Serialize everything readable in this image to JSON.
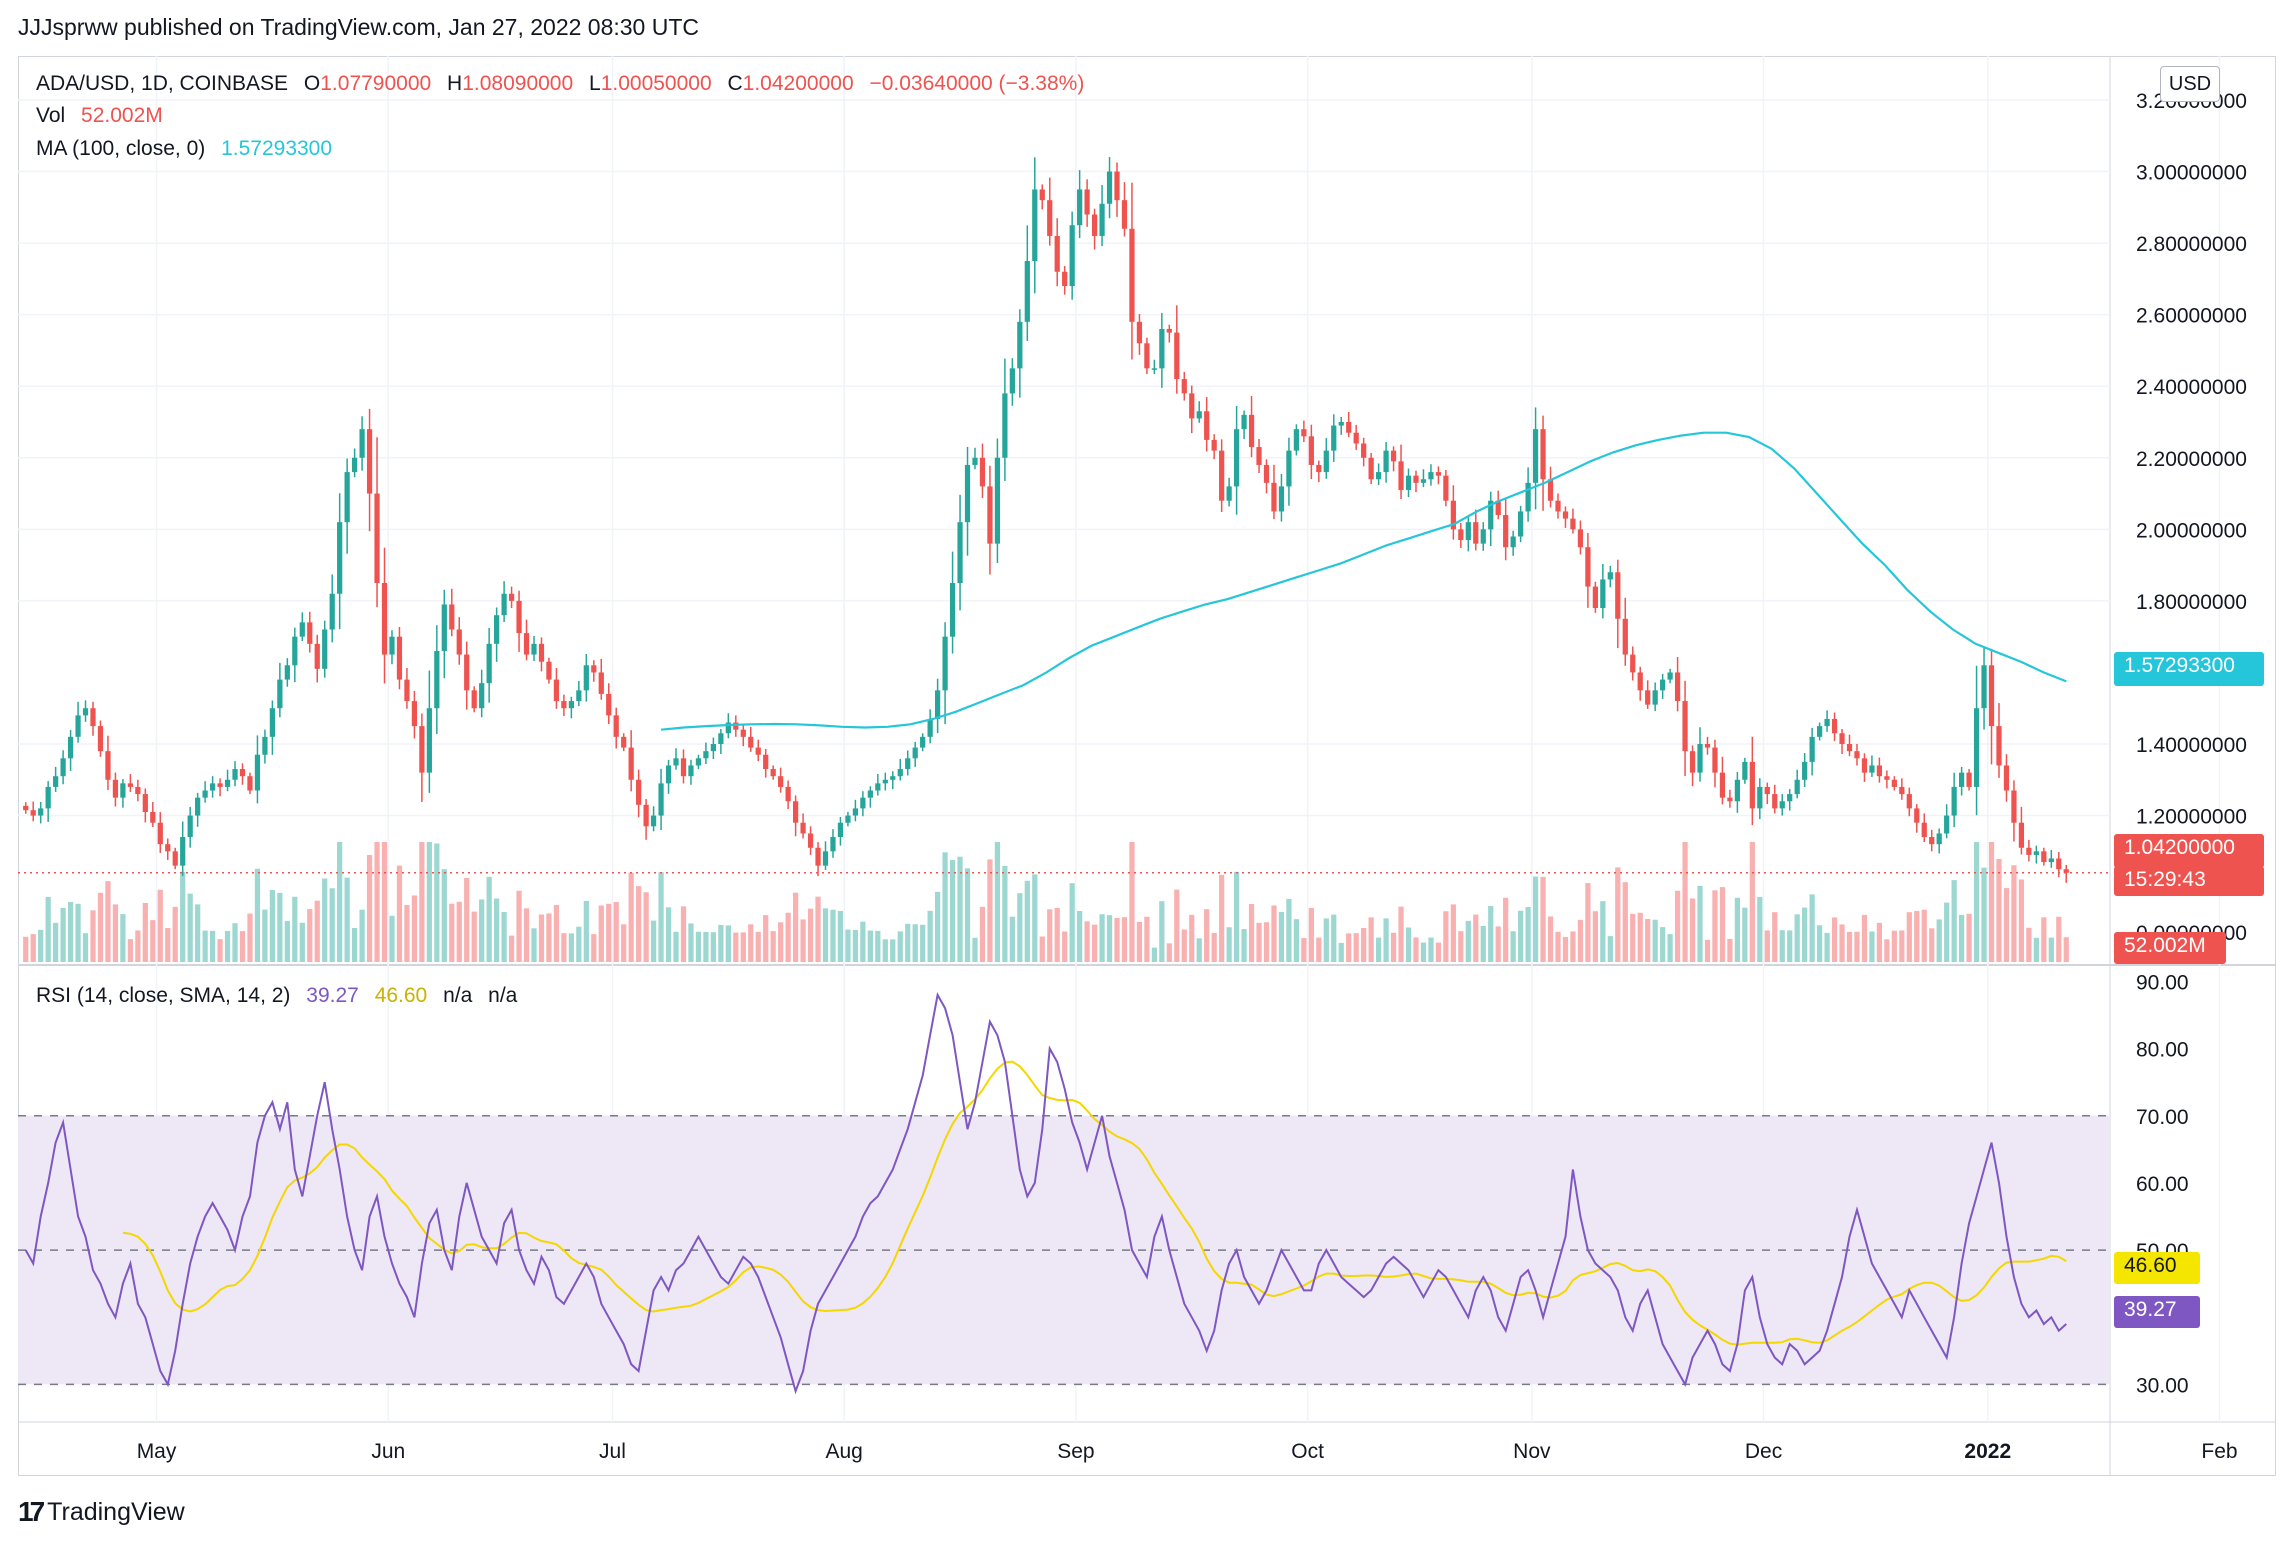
{
  "header": {
    "published": "JJJsprww published on TradingView.com, Jan 27, 2022 08:30 UTC"
  },
  "legend": {
    "symbol": "ADA/USD, 1D, COINBASE",
    "o_label": "O",
    "o": "1.07790000",
    "h_label": "H",
    "h": "1.08090000",
    "l_label": "L",
    "l": "1.00050000",
    "c_label": "C",
    "c": "1.04200000",
    "change": "−0.03640000 (−3.38%)",
    "vol_label": "Vol",
    "vol": "52.002M",
    "ma_label": "MA (100, close, 0)",
    "ma": "1.57293300",
    "rsi_label": "RSI (14, close, SMA, 14, 2)",
    "rsi": "39.27",
    "rsi_sma": "46.60",
    "rsi_na1": "n/a",
    "rsi_na2": "n/a"
  },
  "currency_button": "USD",
  "price_axis": [
    "3.20000000",
    "3.00000000",
    "2.80000000",
    "2.60000000",
    "2.40000000",
    "2.20000000",
    "2.00000000",
    "1.80000000",
    "1.40000000",
    "1.20000000",
    "0.00000000"
  ],
  "rsi_axis": [
    "90.00",
    "80.00",
    "70.00",
    "60.00",
    "50.00",
    "30.00"
  ],
  "time_axis": [
    "May",
    "Jun",
    "Jul",
    "Aug",
    "Sep",
    "Oct",
    "Nov",
    "Dec",
    "2022",
    "Feb"
  ],
  "tags": {
    "ma": "1.57293300",
    "price": "1.04200000",
    "countdown": "15:29:43",
    "volume": "52.002M",
    "rsi_sma": "46.60",
    "rsi": "39.27"
  },
  "colors": {
    "up": "#26a69a",
    "down": "#ef5350",
    "ma": "#26c6da",
    "rsi": "#7e57c2",
    "rsi_sma": "#f5d700",
    "band": "#ede7f6"
  },
  "footer": {
    "brand": "TradingView"
  },
  "chart_data": {
    "type": "candlestick",
    "symbol": "ADA/USD",
    "interval": "1D",
    "ylim": [
      0.95,
      3.2
    ],
    "rsi_ylim": [
      25,
      92
    ],
    "closes": [
      1.215,
      1.2,
      1.22,
      1.28,
      1.31,
      1.36,
      1.42,
      1.48,
      1.5,
      1.45,
      1.38,
      1.3,
      1.25,
      1.29,
      1.28,
      1.26,
      1.21,
      1.18,
      1.12,
      1.1,
      1.06,
      1.14,
      1.2,
      1.25,
      1.27,
      1.29,
      1.28,
      1.3,
      1.33,
      1.31,
      1.27,
      1.37,
      1.42,
      1.5,
      1.58,
      1.62,
      1.7,
      1.74,
      1.68,
      1.61,
      1.72,
      1.82,
      2.02,
      2.16,
      2.2,
      2.28,
      2.1,
      1.85,
      1.65,
      1.7,
      1.58,
      1.52,
      1.45,
      1.32,
      1.5,
      1.66,
      1.79,
      1.72,
      1.65,
      1.55,
      1.5,
      1.57,
      1.68,
      1.76,
      1.82,
      1.8,
      1.71,
      1.65,
      1.68,
      1.63,
      1.58,
      1.52,
      1.5,
      1.52,
      1.55,
      1.62,
      1.6,
      1.54,
      1.48,
      1.42,
      1.39,
      1.3,
      1.23,
      1.17,
      1.2,
      1.29,
      1.34,
      1.36,
      1.31,
      1.34,
      1.36,
      1.38,
      1.4,
      1.43,
      1.46,
      1.44,
      1.42,
      1.39,
      1.37,
      1.33,
      1.31,
      1.28,
      1.24,
      1.18,
      1.15,
      1.11,
      1.06,
      1.1,
      1.14,
      1.18,
      1.2,
      1.22,
      1.25,
      1.27,
      1.29,
      1.3,
      1.31,
      1.33,
      1.36,
      1.39,
      1.42,
      1.47,
      1.55,
      1.7,
      1.85,
      2.02,
      2.18,
      2.2,
      2.12,
      1.96,
      2.2,
      2.38,
      2.45,
      2.58,
      2.75,
      2.95,
      2.92,
      2.82,
      2.72,
      2.68,
      2.85,
      2.95,
      2.88,
      2.82,
      2.91,
      3.0,
      2.92,
      2.84,
      2.58,
      2.52,
      2.45,
      2.45,
      2.56,
      2.55,
      2.42,
      2.38,
      2.31,
      2.33,
      2.25,
      2.22,
      2.08,
      2.12,
      2.28,
      2.32,
      2.23,
      2.18,
      2.13,
      2.05,
      2.12,
      2.22,
      2.28,
      2.26,
      2.18,
      2.16,
      2.22,
      2.29,
      2.3,
      2.27,
      2.24,
      2.2,
      2.14,
      2.16,
      2.22,
      2.19,
      2.11,
      2.15,
      2.13,
      2.14,
      2.16,
      2.15,
      2.08,
      2.0,
      1.97,
      2.02,
      1.96,
      2.0,
      2.08,
      2.04,
      1.95,
      1.98,
      2.05,
      2.13,
      2.28,
      2.14,
      2.08,
      2.05,
      2.03,
      2.0,
      1.95,
      1.84,
      1.78,
      1.86,
      1.88,
      1.75,
      1.65,
      1.6,
      1.55,
      1.51,
      1.55,
      1.58,
      1.6,
      1.52,
      1.38,
      1.32,
      1.4,
      1.39,
      1.32,
      1.25,
      1.24,
      1.3,
      1.35,
      1.22,
      1.28,
      1.26,
      1.22,
      1.24,
      1.26,
      1.3,
      1.35,
      1.42,
      1.45,
      1.47,
      1.43,
      1.4,
      1.38,
      1.36,
      1.32,
      1.34,
      1.31,
      1.3,
      1.28,
      1.26,
      1.22,
      1.18,
      1.14,
      1.12,
      1.15,
      1.2,
      1.28,
      1.32,
      1.28,
      1.5,
      1.62,
      1.45,
      1.34,
      1.27,
      1.18,
      1.11,
      1.09,
      1.1,
      1.07,
      1.08,
      1.05,
      1.04
    ],
    "ma100": {
      "start_index": 85,
      "values": [
        1.44,
        1.446,
        1.45,
        1.453,
        1.455,
        1.456,
        1.455,
        1.452,
        1.448,
        1.446,
        1.448,
        1.455,
        1.47,
        1.49,
        1.515,
        1.54,
        1.565,
        1.6,
        1.64,
        1.675,
        1.7,
        1.725,
        1.75,
        1.77,
        1.79,
        1.805,
        1.825,
        1.845,
        1.865,
        1.885,
        1.905,
        1.93,
        1.955,
        1.975,
        1.995,
        2.015,
        2.05,
        2.08,
        2.105,
        2.13,
        2.16,
        2.19,
        2.215,
        2.235,
        2.25,
        2.262,
        2.27,
        2.27,
        2.258,
        2.225,
        2.17,
        2.1,
        2.03,
        1.96,
        1.9,
        1.83,
        1.77,
        1.72,
        1.68,
        1.655,
        1.63,
        1.6,
        1.575
      ]
    },
    "rsi": [
      50,
      48,
      55,
      60,
      66,
      69,
      62,
      55,
      52,
      47,
      45,
      42,
      40,
      45,
      48,
      42,
      40,
      36,
      32,
      30,
      35,
      42,
      48,
      52,
      55,
      57,
      55,
      53,
      50,
      55,
      58,
      66,
      70,
      72,
      68,
      72,
      62,
      58,
      64,
      70,
      75,
      68,
      62,
      55,
      50,
      47,
      55,
      58,
      52,
      48,
      45,
      43,
      40,
      48,
      54,
      56,
      50,
      47,
      55,
      60,
      56,
      52,
      50,
      48,
      54,
      56,
      50,
      47,
      45,
      49,
      47,
      43,
      42,
      44,
      46,
      48,
      46,
      42,
      40,
      38,
      36,
      33,
      32,
      38,
      44,
      46,
      44,
      47,
      48,
      50,
      52,
      50,
      48,
      46,
      45,
      47,
      49,
      48,
      46,
      43,
      40,
      37,
      33,
      29,
      32,
      38,
      42,
      44,
      46,
      48,
      50,
      52,
      55,
      57,
      58,
      60,
      62,
      65,
      68,
      72,
      76,
      82,
      88,
      86,
      82,
      75,
      68,
      72,
      78,
      84,
      82,
      78,
      70,
      62,
      58,
      60,
      68,
      80,
      78,
      74,
      69,
      66,
      62,
      66,
      70,
      64,
      60,
      56,
      50,
      48,
      46,
      52,
      55,
      50,
      46,
      42,
      40,
      38,
      35,
      38,
      44,
      48,
      50,
      46,
      44,
      42,
      44,
      47,
      50,
      48,
      46,
      44,
      44,
      48,
      50,
      48,
      46,
      45,
      44,
      43,
      44,
      46,
      48,
      49,
      48,
      47,
      45,
      43,
      45,
      47,
      46,
      44,
      42,
      40,
      44,
      46,
      44,
      40,
      38,
      42,
      46,
      47,
      44,
      40,
      44,
      48,
      52,
      62,
      55,
      50,
      48,
      47,
      46,
      44,
      40,
      38,
      42,
      44,
      40,
      36,
      34,
      32,
      30,
      34,
      36,
      38,
      36,
      33,
      32,
      36,
      44,
      46,
      40,
      36,
      34,
      33,
      36,
      35,
      33,
      34,
      35,
      38,
      42,
      46,
      52,
      56,
      52,
      48,
      46,
      44,
      42,
      40,
      44,
      42,
      40,
      38,
      36,
      34,
      40,
      48,
      54,
      58,
      62,
      66,
      60,
      52,
      46,
      42,
      40,
      41,
      39,
      40,
      38,
      39
    ]
  }
}
